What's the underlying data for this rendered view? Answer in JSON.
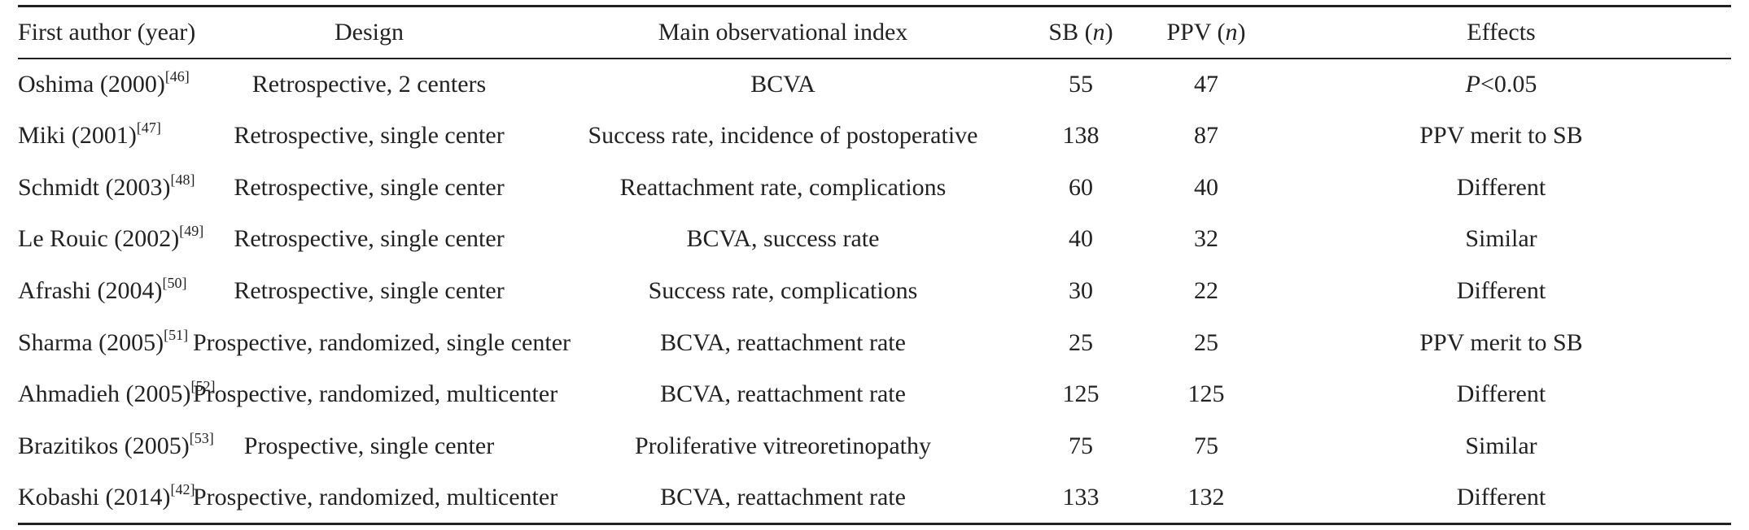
{
  "table": {
    "headers": {
      "author": "First author (year)",
      "design": "Design",
      "index": "Main observational index",
      "sb_label": "SB (",
      "sb_n": "n",
      "sb_close": ")",
      "ppv_label": "PPV (",
      "ppv_n": "n",
      "ppv_close": ")",
      "effects": "Effects"
    },
    "rows": [
      {
        "author": "Oshima (2000)",
        "ref": "[46]",
        "design": "Retrospective, 2 centers",
        "index": "BCVA",
        "sb": "55",
        "ppv": "47",
        "effects_italic": "P",
        "effects": "<0.05"
      },
      {
        "author": "Miki (2001)",
        "ref": "[47]",
        "design": "Retrospective, single center",
        "index": "Success rate, incidence of postoperative",
        "sb": "138",
        "ppv": "87",
        "effects_italic": "",
        "effects": "PPV merit to SB"
      },
      {
        "author": "Schmidt (2003)",
        "ref": "[48]",
        "design": "Retrospective, single center",
        "index": "Reattachment rate, complications",
        "sb": "60",
        "ppv": "40",
        "effects_italic": "",
        "effects": "Different"
      },
      {
        "author": "Le Rouic (2002)",
        "ref": "[49]",
        "design": "Retrospective, single center",
        "index": "BCVA, success rate",
        "sb": "40",
        "ppv": "32",
        "effects_italic": "",
        "effects": "Similar"
      },
      {
        "author": "Afrashi (2004)",
        "ref": "[50]",
        "design": "Retrospective, single center",
        "index": "Success rate, complications",
        "sb": "30",
        "ppv": "22",
        "effects_italic": "",
        "effects": "Different"
      },
      {
        "author": "Sharma (2005)",
        "ref": "[51]",
        "design": "Prospective, randomized, single center",
        "index": "BCVA, reattachment rate",
        "sb": "25",
        "ppv": "25",
        "effects_italic": "",
        "effects": "PPV merit to SB"
      },
      {
        "author": "Ahmadieh (2005)",
        "ref": "[52]",
        "design": "Prospective, randomized, multicenter",
        "index": "BCVA, reattachment rate",
        "sb": "125",
        "ppv": "125",
        "effects_italic": "",
        "effects": "Different"
      },
      {
        "author": "Brazitikos (2005)",
        "ref": "[53]",
        "design": "Prospective, single center",
        "index": "Proliferative vitreoretinopathy",
        "sb": "75",
        "ppv": "75",
        "effects_italic": "",
        "effects": "Similar"
      },
      {
        "author": "Kobashi (2014)",
        "ref": "[42]",
        "design": "Prospective, randomized, multicenter",
        "index": "BCVA, reattachment rate",
        "sb": "133",
        "ppv": "132",
        "effects_italic": "",
        "effects": "Different"
      }
    ]
  }
}
